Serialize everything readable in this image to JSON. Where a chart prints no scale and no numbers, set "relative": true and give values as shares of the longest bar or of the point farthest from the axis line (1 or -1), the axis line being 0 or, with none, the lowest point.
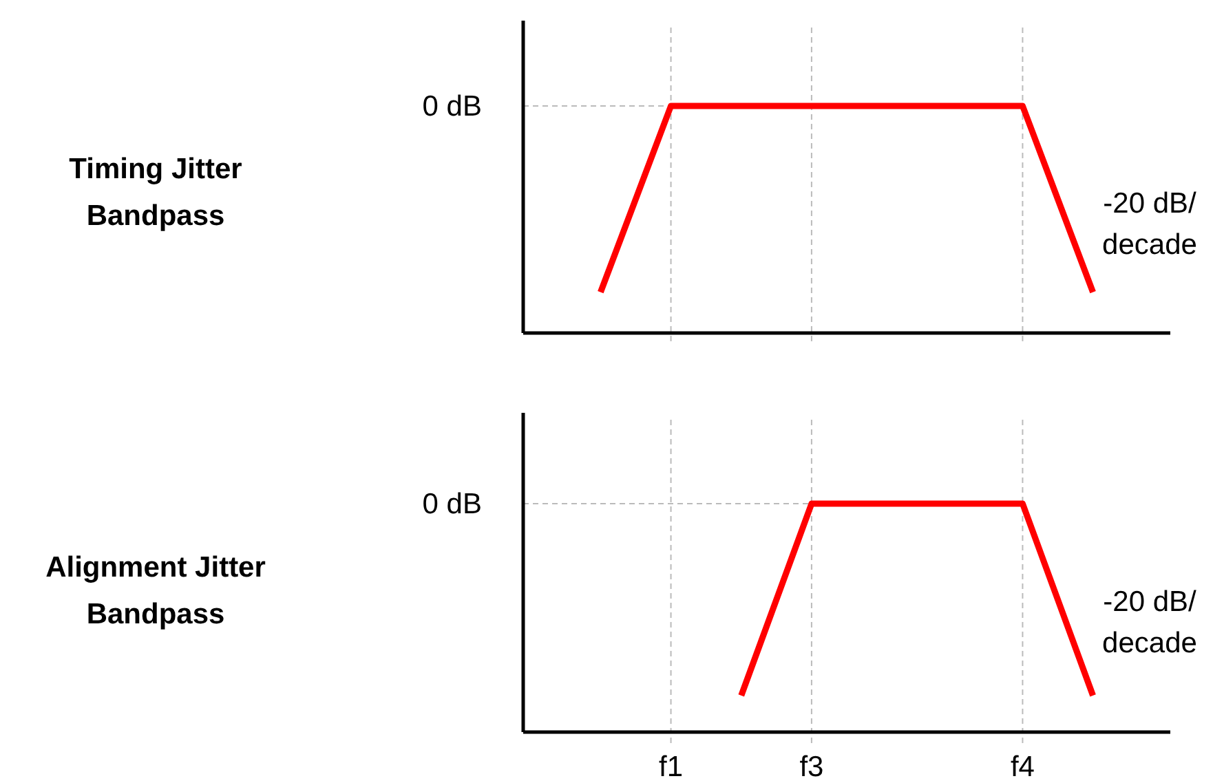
{
  "chart_data": [
    {
      "type": "line",
      "ylabel": "Timing Jitter Bandpass",
      "relative": true,
      "categories": [
        null,
        null,
        null,
        null,
        null,
        null,
        null,
        null,
        null,
        null
      ],
      "values": [
        null,
        0.18,
        1,
        1,
        1,
        1,
        1,
        1,
        0.18,
        null
      ],
      "color": "#ff0000",
      "tick_labels": false,
      "grid": "x",
      "marker": "none",
      "line_style": "solid",
      "ref_lines": [
        {
          "axis": "y",
          "value": 1,
          "label": "0 dB"
        }
      ],
      "annotations": [
        "-20 dB/decade"
      ]
    },
    {
      "type": "line",
      "ylabel": "Alignment Jitter Bandpass",
      "relative": true,
      "categories": [
        null,
        null,
        "f1",
        null,
        "f3",
        null,
        null,
        "f4",
        null,
        null
      ],
      "values": [
        null,
        null,
        null,
        0.16,
        1,
        1,
        1,
        1,
        0.16,
        null
      ],
      "color": "#ff0000",
      "tick_labels": "x",
      "grid": "x",
      "marker": "none",
      "line_style": "solid",
      "ref_lines": [
        {
          "axis": "y",
          "value": 1,
          "label": "0 dB"
        }
      ],
      "annotations": [
        "-20 dB/decade"
      ]
    }
  ]
}
